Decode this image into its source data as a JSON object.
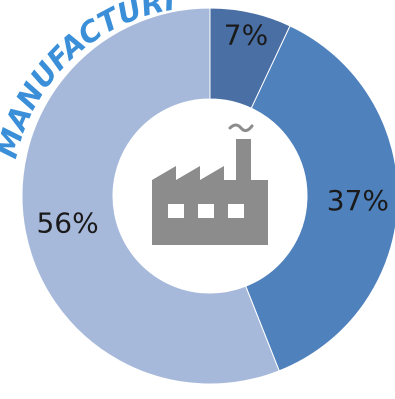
{
  "chart_data": {
    "type": "pie",
    "variant": "donut",
    "title": "MANUFACTURING",
    "slices": [
      {
        "label": "7%",
        "value": 7,
        "color": "#4a6fa5"
      },
      {
        "label": "37%",
        "value": 37,
        "color": "#4f81bd"
      },
      {
        "label": "56%",
        "value": 56,
        "color": "#a7b9db"
      }
    ],
    "center_icon": "factory-icon",
    "center_icon_color": "#8c8c8c",
    "title_color": "#3a8fd8"
  }
}
